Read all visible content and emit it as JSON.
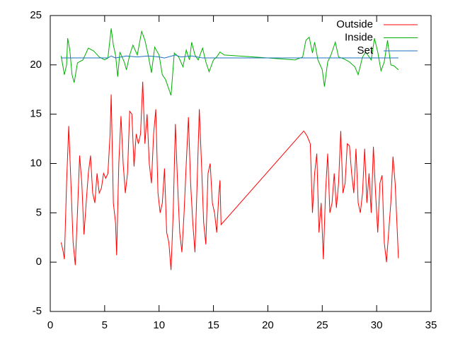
{
  "chart_data": {
    "type": "line",
    "xlim": [
      0,
      35
    ],
    "xticks": [
      0,
      5,
      10,
      15,
      20,
      25,
      30,
      35
    ],
    "ylim": [
      -5,
      25
    ],
    "yticks": [
      -5,
      0,
      5,
      10,
      15,
      20,
      25
    ],
    "legend": "top right",
    "series": [
      {
        "name": "Outside",
        "color": "#ff0000",
        "x": [
          1,
          1.2,
          1.3,
          1.5,
          1.7,
          1.9,
          2.1,
          2.3,
          2.5,
          2.7,
          2.9,
          3.1,
          3.3,
          3.5,
          3.7,
          3.9,
          4.1,
          4.3,
          4.5,
          4.7,
          4.9,
          5.1,
          5.3,
          5.5,
          5.6,
          5.8,
          6.0,
          6.1,
          6.3,
          6.5,
          6.7,
          6.9,
          7.1,
          7.3,
          7.5,
          7.7,
          7.9,
          8.1,
          8.3,
          8.5,
          8.7,
          8.9,
          9.1,
          9.3,
          9.5,
          9.7,
          9.9,
          10.1,
          10.3,
          10.5,
          10.7,
          10.9,
          11.1,
          11.3,
          11.5,
          11.7,
          11.9,
          12.1,
          12.3,
          12.5,
          12.7,
          12.9,
          13.1,
          13.3,
          13.5,
          13.7,
          13.9,
          14.1,
          14.3,
          14.5,
          14.7,
          14.9,
          15.1,
          15.3,
          15.5,
          15.6,
          15.7,
          23.3,
          23.6,
          23.9,
          24.1,
          24.3,
          24.5,
          24.7,
          24.9,
          25.1,
          25.3,
          25.5,
          25.7,
          25.9,
          26.1,
          26.3,
          26.5,
          26.7,
          26.9,
          27.1,
          27.3,
          27.5,
          27.7,
          27.9,
          28.1,
          28.3,
          28.5,
          28.7,
          28.9,
          29.1,
          29.3,
          29.5,
          29.7,
          29.9,
          30.1,
          30.3,
          30.5,
          30.7,
          30.9,
          31.1,
          31.3,
          31.5,
          31.7,
          31.9,
          32.0
        ],
        "values": [
          2,
          1,
          0.3,
          8,
          13.8,
          8,
          2,
          -0.3,
          5,
          10.8,
          8,
          2.8,
          6,
          9,
          10.8,
          7,
          6,
          9,
          7,
          7.5,
          9,
          8.5,
          9,
          13,
          17,
          6,
          4,
          0.7,
          10,
          14.8,
          10,
          7,
          9,
          15.3,
          15,
          9.7,
          13,
          12,
          13,
          18.3,
          12,
          15,
          10,
          8,
          13,
          15.5,
          7,
          5,
          6,
          9.5,
          3,
          2,
          -0.8,
          5,
          14,
          8,
          3,
          1,
          5,
          10,
          14.7,
          8,
          4,
          1,
          8,
          15.5,
          10,
          4,
          1.8,
          9,
          10,
          6,
          5,
          3,
          7,
          8.3,
          3.8,
          13.3,
          12.8,
          12,
          5,
          9,
          11,
          3,
          6,
          0.3,
          7,
          11,
          5,
          6,
          9,
          5.5,
          8,
          13.3,
          7,
          8,
          12,
          11.8,
          9,
          7,
          11.5,
          6,
          5,
          7,
          11.5,
          6,
          9,
          5,
          11.7,
          7,
          3,
          8,
          8.8,
          2,
          0,
          3,
          6,
          10.7,
          8,
          3,
          0.4
        ]
      },
      {
        "name": "Inside",
        "color": "#00b000",
        "x": [
          1,
          1.3,
          1.5,
          1.6,
          1.8,
          2.0,
          2.2,
          2.5,
          3,
          3.5,
          4,
          4.5,
          5,
          5.3,
          5.6,
          5.8,
          6,
          6.2,
          6.4,
          6.8,
          7,
          7.3,
          7.6,
          8,
          8.4,
          8.7,
          9,
          9.3,
          9.6,
          10,
          10.3,
          10.6,
          11.1,
          11.4,
          11.8,
          12.2,
          12.5,
          12.8,
          13,
          13.3,
          13.6,
          14,
          14.3,
          14.6,
          15,
          15.3,
          15.6,
          16,
          20,
          22.5,
          23.2,
          23.5,
          23.8,
          24.1,
          24.3,
          24.6,
          25,
          25.2,
          25.5,
          25.8,
          26.2,
          26.5,
          27,
          27.5,
          28,
          28.3,
          28.7,
          29,
          29.5,
          29.8,
          30.1,
          30.4,
          30.7,
          31,
          31.3,
          31.6,
          32
        ],
        "values": [
          20.9,
          19,
          20,
          22.7,
          21.5,
          19,
          18.2,
          20.2,
          20.5,
          21.7,
          21.4,
          20.8,
          20.5,
          20.7,
          23.7,
          22,
          21,
          18.8,
          21.3,
          20.3,
          19.5,
          21,
          22,
          21,
          23.4,
          22.5,
          21,
          19.2,
          21.8,
          21,
          19,
          18.5,
          16.9,
          21.2,
          20.8,
          19.8,
          21.5,
          20.5,
          22.3,
          21,
          20.5,
          21.7,
          20.3,
          19.3,
          20.5,
          20.8,
          21.3,
          21,
          20.7,
          20.5,
          20.8,
          22.5,
          22.8,
          21.2,
          22.3,
          20.5,
          19.5,
          17.8,
          20.3,
          21,
          22.3,
          20.8,
          20.6,
          20.3,
          19.8,
          19,
          20.8,
          21.3,
          20.5,
          22.7,
          21.3,
          19.4,
          20.3,
          22.5,
          20,
          19.9,
          19.5
        ]
      },
      {
        "name": "Set",
        "color": "#1a70c0",
        "x": [
          1,
          5.3,
          5.6,
          6,
          7,
          8,
          9,
          10,
          10.5,
          11.5,
          12,
          13,
          14,
          32
        ],
        "values": [
          20.7,
          20.7,
          20.9,
          20.7,
          20.9,
          20.8,
          20.9,
          20.8,
          20.7,
          21,
          20.8,
          20.9,
          20.7,
          20.7
        ]
      }
    ]
  }
}
